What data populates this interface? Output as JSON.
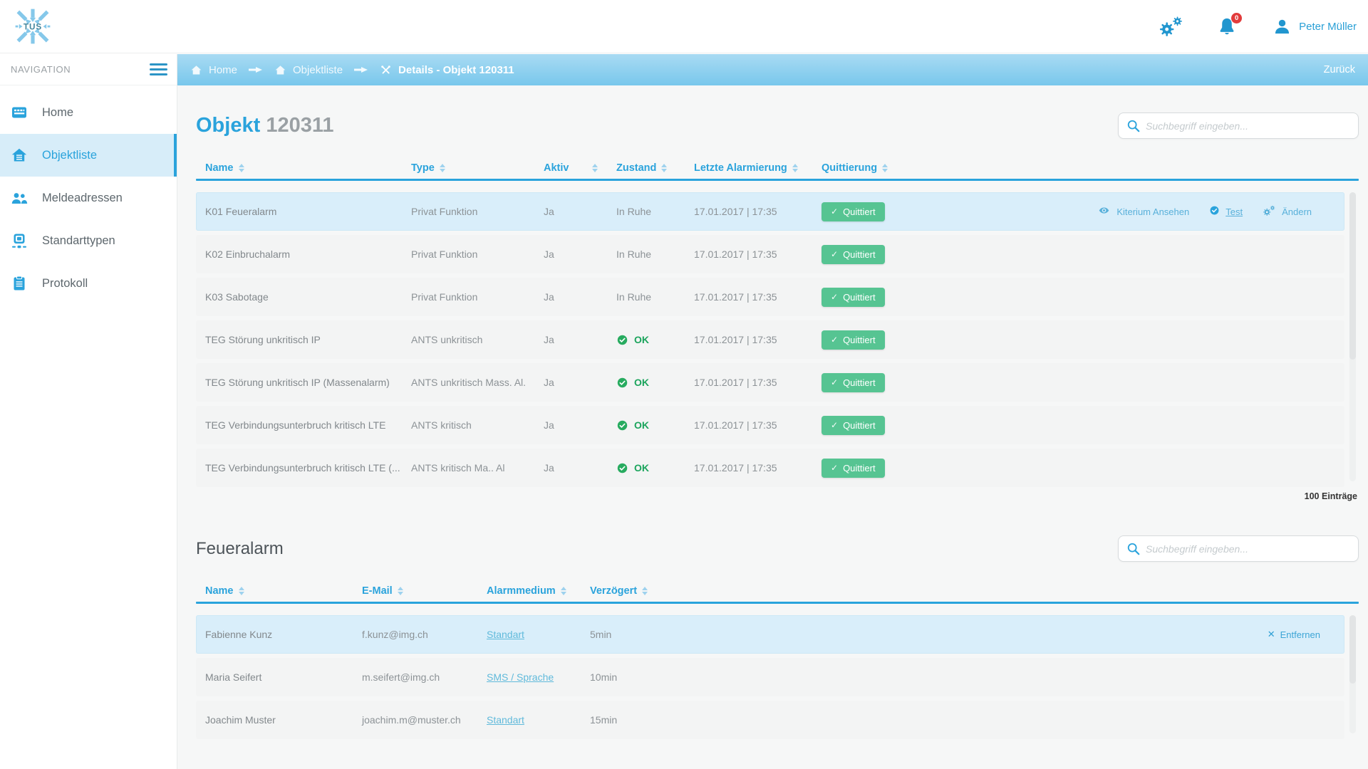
{
  "brand": {
    "logo_text": "TUS"
  },
  "header": {
    "user_name": "Peter Müller",
    "notification_count": "0"
  },
  "breadcrumb": {
    "items": [
      {
        "label": "Home"
      },
      {
        "label": "Objektliste"
      },
      {
        "label": "Details - Objekt 120311"
      }
    ],
    "back_label": "Zurück"
  },
  "sidebar": {
    "title": "NAVIGATION",
    "items": [
      {
        "label": "Home"
      },
      {
        "label": "Objektliste",
        "active": true
      },
      {
        "label": "Meldeadressen"
      },
      {
        "label": "Standarttypen"
      },
      {
        "label": "Protokoll"
      }
    ]
  },
  "glyphs": {
    "check": "✓",
    "remove": "✕"
  },
  "colors": {
    "primary_blue": "#2aa3dc",
    "breadcrumb_gradient_top": "#a9dbf3",
    "breadcrumb_gradient_bottom": "#78c7ec",
    "highlight_row": "#d9eefa",
    "success_button_green": "#56c492",
    "ok_status_green": "#1ba45c",
    "badge_red": "#e23b3b"
  },
  "object_section": {
    "title_prefix": "Objekt",
    "title_number": "120311",
    "search_placeholder": "Suchbegriff eingeben...",
    "columns": [
      "Name",
      "Type",
      "Aktiv",
      "Zustand",
      "Letzte Alarmierung",
      "Quittierung"
    ],
    "rows": [
      {
        "name": "K01 Feueralarm",
        "type": "Privat Funktion",
        "aktiv": "Ja",
        "zustand": "In Ruhe",
        "zustand_ok": false,
        "letzte": "17.01.2017 | 17:35",
        "quittierung": "Quittiert",
        "highlighted": true,
        "actions": [
          "Kiterium Ansehen",
          "Test",
          "Ändern"
        ]
      },
      {
        "name": "K02 Einbruchalarm",
        "type": "Privat Funktion",
        "aktiv": "Ja",
        "zustand": "In Ruhe",
        "zustand_ok": false,
        "letzte": "17.01.2017 | 17:35",
        "quittierung": "Quittiert"
      },
      {
        "name": "K03 Sabotage",
        "type": "Privat Funktion",
        "aktiv": "Ja",
        "zustand": "In Ruhe",
        "zustand_ok": false,
        "letzte": "17.01.2017 | 17:35",
        "quittierung": "Quittiert"
      },
      {
        "name": "TEG Störung unkritisch IP",
        "type": "ANTS unkritisch",
        "aktiv": "Ja",
        "zustand": "OK",
        "zustand_ok": true,
        "letzte": "17.01.2017 | 17:35",
        "quittierung": "Quittiert"
      },
      {
        "name": "TEG Störung unkritisch IP (Massenalarm)",
        "type": "ANTS unkritisch Mass. Al.",
        "aktiv": "Ja",
        "zustand": "OK",
        "zustand_ok": true,
        "letzte": "17.01.2017 | 17:35",
        "quittierung": "Quittiert"
      },
      {
        "name": "TEG Verbindungsunterbruch kritisch LTE",
        "type": "ANTS kritisch",
        "aktiv": "Ja",
        "zustand": "OK",
        "zustand_ok": true,
        "letzte": "17.01.2017 | 17:35",
        "quittierung": "Quittiert"
      },
      {
        "name": "TEG Verbindungsunterbruch kritisch LTE (...",
        "type": "ANTS kritisch Ma.. Al",
        "aktiv": "Ja",
        "zustand": "OK",
        "zustand_ok": true,
        "letzte": "17.01.2017 | 17:35",
        "quittierung": "Quittiert"
      }
    ],
    "footer_count": "100 Einträge"
  },
  "detail_section": {
    "title": "Feueralarm",
    "search_placeholder": "Suchbegriff eingeben...",
    "columns": [
      "Name",
      "E-Mail",
      "Alarmmedium",
      "Verzögert"
    ],
    "rows": [
      {
        "name": "Fabienne Kunz",
        "email": "f.kunz@img.ch",
        "medium": "Standart",
        "verzoegert": "5min",
        "highlighted": true,
        "remove_label": "Entfernen"
      },
      {
        "name": "Maria Seifert",
        "email": "m.seifert@img.ch",
        "medium": "SMS / Sprache",
        "verzoegert": "10min"
      },
      {
        "name": "Joachim Muster",
        "email": "joachim.m@muster.ch",
        "medium": "Standart",
        "verzoegert": "15min"
      }
    ]
  }
}
